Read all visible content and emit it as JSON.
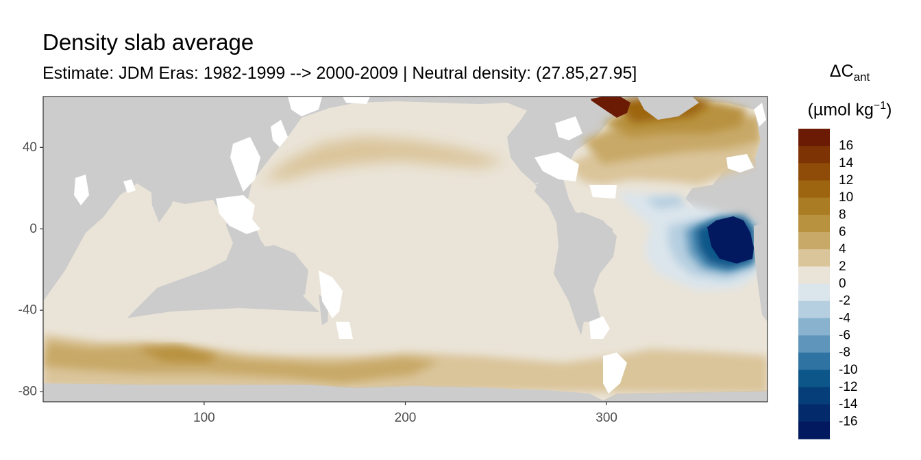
{
  "title": "Density slab average",
  "subtitle": "Estimate: JDM Eras: 1982-1999 --> 2000-2009 | Neutral density: (27.85,27.95]",
  "chart_data": {
    "type": "heatmap",
    "title": "Density slab average",
    "subtitle": "Estimate: JDM Eras: 1982-1999 --> 2000-2009 | Neutral density: (27.85,27.95]",
    "x_axis": {
      "ticks": [
        "100",
        "200",
        "300"
      ],
      "tick_values": [
        100,
        200,
        300
      ],
      "range": [
        20,
        380
      ]
    },
    "y_axis": {
      "ticks": [
        "40",
        "0",
        "-40",
        "-80"
      ],
      "tick_values": [
        40,
        0,
        -40,
        -80
      ],
      "range": [
        -85,
        65
      ]
    },
    "legend": {
      "title_main": "ΔC",
      "title_sub": "ant",
      "unit_prefix": "(µmol kg",
      "unit_sup": "−1",
      "unit_suffix": ")",
      "labels": [
        "16",
        "14",
        "12",
        "10",
        "8",
        "6",
        "4",
        "2",
        "0",
        "-2",
        "-4",
        "-6",
        "-8",
        "-10",
        "-12",
        "-14",
        "-16"
      ],
      "colors": [
        "#6b1a04",
        "#7e3305",
        "#8f4c08",
        "#9d650f",
        "#aa7c24",
        "#b8923f",
        "#c8a968",
        "#dac49a",
        "#eae4d8",
        "#dbe5ec",
        "#b6cfe0",
        "#88b2cd",
        "#5f95ba",
        "#2f73a3",
        "#0c5689",
        "#053e78",
        "#032b6c",
        "#02195f"
      ]
    },
    "regions": {
      "land": "#cccccc",
      "background_ocean": "#eae4d8",
      "southern_ocean_band": "#dac49a",
      "north_atlantic_high": "#6b1a04",
      "east_atlantic_low": "#02195f"
    }
  }
}
